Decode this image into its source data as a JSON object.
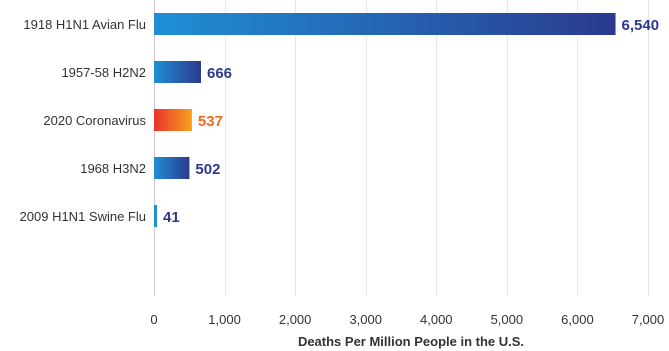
{
  "chart_data": {
    "type": "bar",
    "orientation": "horizontal",
    "categories": [
      "1918 H1N1 Avian Flu",
      "1957-58 H2N2",
      "2020 Coronavirus",
      "1968 H3N2",
      "2009 H1N1 Swine Flu"
    ],
    "values": [
      6540,
      666,
      537,
      502,
      41
    ],
    "value_labels": [
      "6,540",
      "666",
      "537",
      "502",
      "41"
    ],
    "highlight_index": 2,
    "xlabel": "Deaths Per Million People in the U.S.",
    "ylabel": "",
    "title": "",
    "xlim": [
      0,
      7000
    ],
    "xticks": [
      0,
      1000,
      2000,
      3000,
      4000,
      5000,
      6000,
      7000
    ],
    "xtick_labels": [
      "0",
      "1,000",
      "2,000",
      "3,000",
      "4,000",
      "5,000",
      "6,000",
      "7,000"
    ],
    "grid": "vertical",
    "legend": "none",
    "colors": {
      "bar_start": "#1f8fd6",
      "bar_end": "#2b3a8f",
      "highlight_start": "#e8322e",
      "highlight_end": "#f7a21b",
      "label_default": "#2b3a8f",
      "label_highlight": "#f26a21",
      "grid": "#e6e6e6",
      "axis": "#cccccc"
    }
  }
}
